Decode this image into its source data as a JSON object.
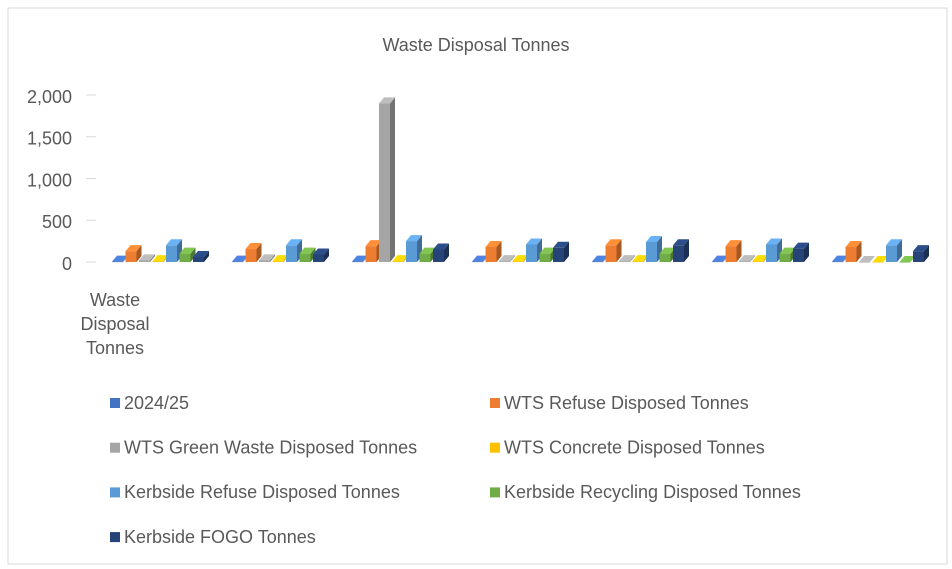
{
  "chart_data": {
    "type": "bar3d",
    "title": "Waste Disposal Tonnes",
    "categories": [
      "Waste Disposal Tonnes",
      null,
      null,
      null,
      null,
      null,
      null
    ],
    "series": [
      {
        "name": "2024/25",
        "color": "#4472c4",
        "values": [
          5,
          5,
          5,
          5,
          5,
          5,
          5
        ]
      },
      {
        "name": "WTS Refuse Disposed Tonnes",
        "color": "#ed7d31",
        "values": [
          130,
          155,
          190,
          180,
          200,
          190,
          180
        ]
      },
      {
        "name": "WTS Green Waste Disposed Tonnes",
        "color": "#a5a5a5",
        "values": [
          20,
          20,
          1900,
          10,
          10,
          10,
          0
        ]
      },
      {
        "name": "WTS Concrete Disposed Tonnes",
        "color": "#ffc000",
        "values": [
          10,
          10,
          10,
          10,
          10,
          10,
          0
        ]
      },
      {
        "name": "Kerbside Refuse Disposed Tonnes",
        "color": "#5b9bd5",
        "values": [
          200,
          200,
          250,
          210,
          240,
          210,
          200
        ]
      },
      {
        "name": "Kerbside Recycling Disposed Tonnes",
        "color": "#70ad47",
        "values": [
          100,
          100,
          100,
          100,
          100,
          100,
          0
        ]
      },
      {
        "name": "Kerbside FOGO Tonnes",
        "color": "#264478",
        "values": [
          60,
          90,
          150,
          170,
          200,
          160,
          130
        ]
      }
    ],
    "ylim": [
      0,
      2000
    ],
    "yticks": [
      0,
      500,
      {
        "value": 1000,
        "label": "1,000"
      },
      {
        "value": 1500,
        "label": "1,500"
      },
      {
        "value": 2000,
        "label": "2,000"
      }
    ]
  }
}
